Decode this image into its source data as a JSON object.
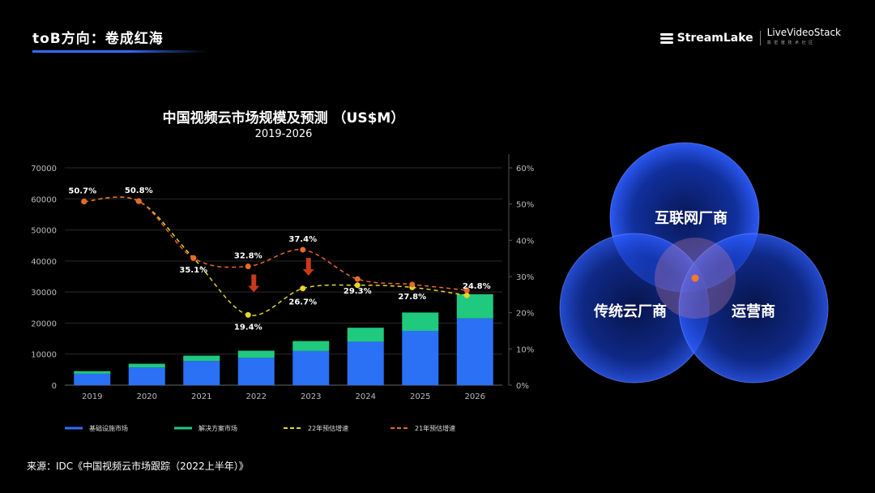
{
  "header": {
    "title": "toB方向：卷成红海"
  },
  "brand": {
    "logo1": "StreamLake",
    "logo2": "LiveVideoStack",
    "logo2_sub": "高 密 度 技 术 社 区"
  },
  "chart_data": {
    "type": "bar",
    "title": "中国视频云市场规模及预测 （US$M）",
    "subtitle": "2019-2026",
    "categories": [
      "2019",
      "2020",
      "2021",
      "2022",
      "2023",
      "2024",
      "2025",
      "2026"
    ],
    "ylim": [
      0,
      70000
    ],
    "y_ticks": [
      "0",
      "10000",
      "20000",
      "30000",
      "40000",
      "50000",
      "60000",
      "70000"
    ],
    "y2lim": [
      0,
      60
    ],
    "y2_ticks": [
      "0%",
      "10%",
      "20%",
      "30%",
      "40%",
      "50%",
      "60%"
    ],
    "stacked": true,
    "series": [
      {
        "name": "基础设施市场",
        "kind": "bar",
        "color": "#2b71f6",
        "values": [
          3700,
          5700,
          7800,
          8800,
          11000,
          14000,
          17500,
          21500
        ]
      },
      {
        "name": "解决方案市场",
        "kind": "bar",
        "color": "#1fc97e",
        "values": [
          800,
          1200,
          1700,
          2300,
          3200,
          4500,
          5900,
          7800
        ]
      },
      {
        "name": "22年预估增速",
        "kind": "line",
        "axis": "right",
        "color": "#e6d62a",
        "values": [
          50.7,
          50.8,
          35.1,
          19.4,
          26.7,
          27.6,
          27.0,
          24.8
        ],
        "labels": [
          "",
          "",
          "",
          "19.4%",
          "26.7%",
          "",
          "",
          "24.8%"
        ]
      },
      {
        "name": "21年预估增速",
        "kind": "line",
        "axis": "right",
        "color": "#e8692a",
        "values": [
          50.7,
          50.8,
          35.1,
          32.8,
          37.4,
          29.3,
          27.8,
          26.2
        ],
        "labels": [
          "50.7%",
          "50.8%",
          "35.1%",
          "32.8%",
          "37.4%",
          "29.3%",
          "27.8%",
          ""
        ]
      }
    ],
    "arrows_at": [
      "2022",
      "2023"
    ],
    "legend_position": "bottom",
    "grid": true
  },
  "venn": {
    "top": "互联网厂商",
    "left": "传统云厂商",
    "right": "运营商"
  },
  "source": "来源：IDC《中国视频云市场跟踪（2022上半年）》"
}
